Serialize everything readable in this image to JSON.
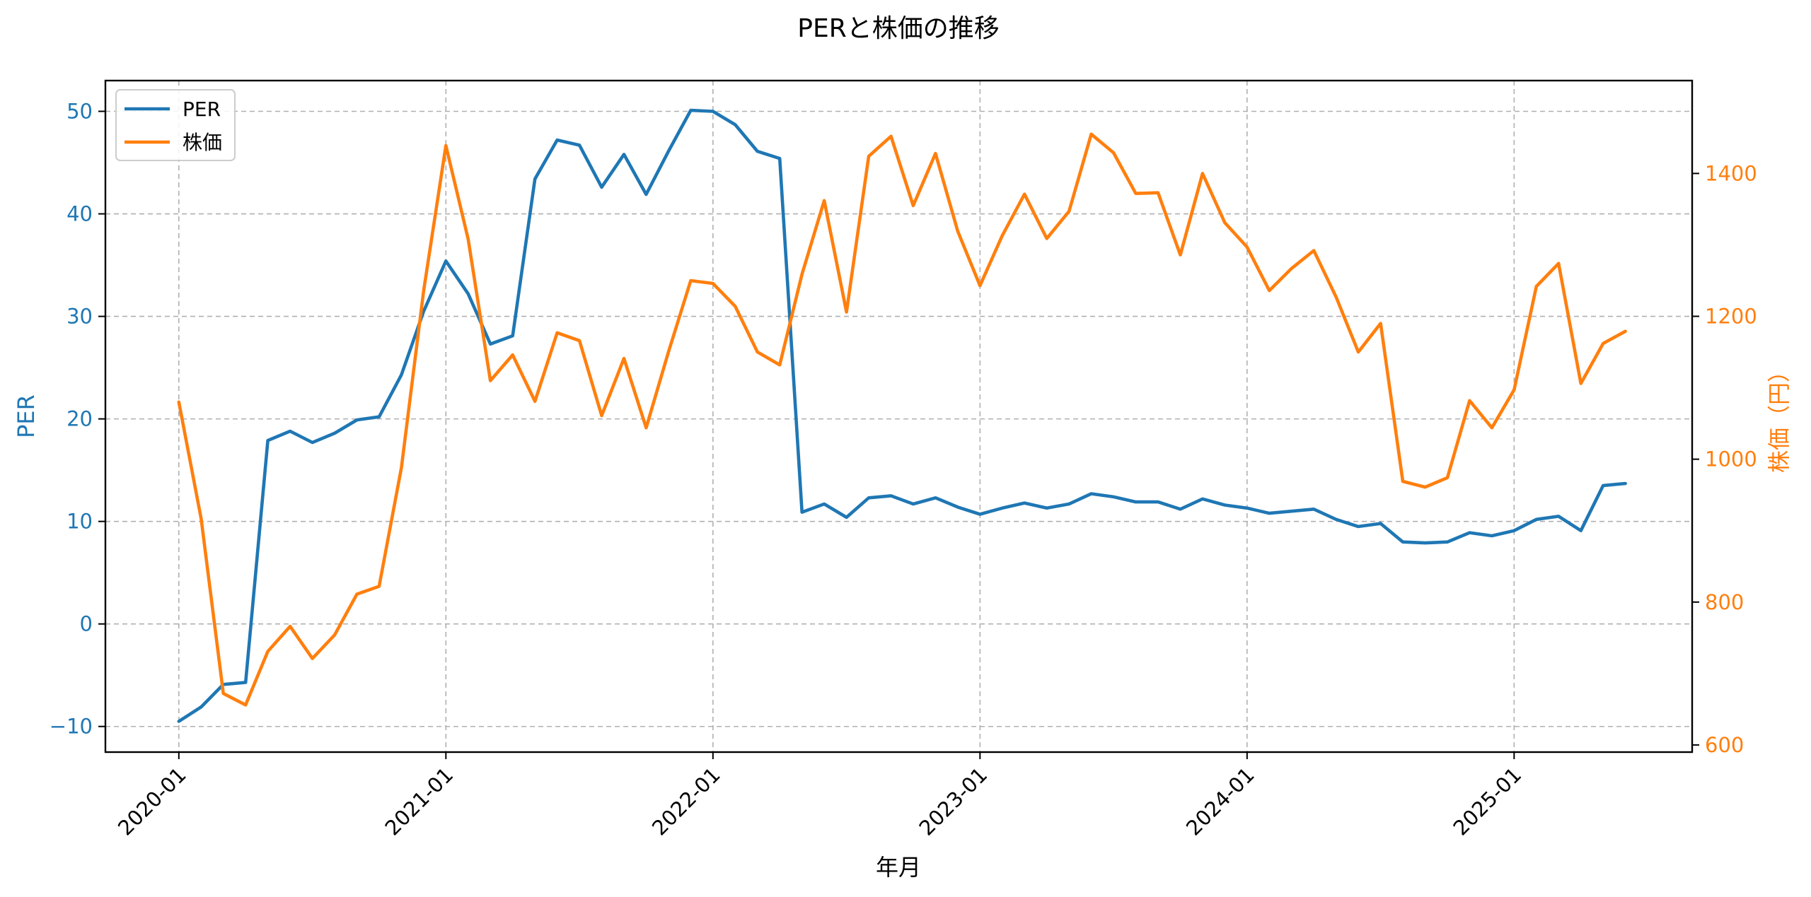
{
  "chart_data": {
    "type": "line",
    "title": "PERと株価の推移",
    "xlabel": "年月",
    "ylabel_left": "PER",
    "ylabel_right": "株価（円）",
    "ylim_left": [
      -12.5,
      53
    ],
    "ylim_right": [
      590,
      1530
    ],
    "yticks_left": [
      -10,
      0,
      10,
      20,
      30,
      40,
      50
    ],
    "ytick_labels_left": [
      "−10",
      "0",
      "10",
      "20",
      "30",
      "40",
      "50"
    ],
    "yticks_right": [
      600,
      800,
      1000,
      1200,
      1400
    ],
    "ytick_labels_right": [
      "600",
      "800",
      "1000",
      "1200",
      "1400"
    ],
    "xticks": [
      0,
      12,
      24,
      36,
      48,
      60
    ],
    "xtick_labels": [
      "2020-01",
      "2021-01",
      "2022-01",
      "2023-01",
      "2024-01",
      "2025-01"
    ],
    "x_range": [
      -3.3,
      68
    ],
    "grid": true,
    "legend_position": "top-left",
    "colors": {
      "per": "#1f77b4",
      "price": "#ff7f0e"
    },
    "x": [
      "2020-01",
      "2020-02",
      "2020-03",
      "2020-04",
      "2020-05",
      "2020-06",
      "2020-07",
      "2020-08",
      "2020-09",
      "2020-10",
      "2020-11",
      "2020-12",
      "2021-01",
      "2021-02",
      "2021-03",
      "2021-04",
      "2021-05",
      "2021-06",
      "2021-07",
      "2021-08",
      "2021-09",
      "2021-10",
      "2021-11",
      "2021-12",
      "2022-01",
      "2022-02",
      "2022-03",
      "2022-04",
      "2022-05",
      "2022-06",
      "2022-07",
      "2022-08",
      "2022-09",
      "2022-10",
      "2022-11",
      "2022-12",
      "2023-01",
      "2023-02",
      "2023-03",
      "2023-04",
      "2023-05",
      "2023-06",
      "2023-07",
      "2023-08",
      "2023-09",
      "2023-10",
      "2023-11",
      "2023-12",
      "2024-01",
      "2024-02",
      "2024-03",
      "2024-04",
      "2024-05",
      "2024-06",
      "2024-07",
      "2024-08",
      "2024-09",
      "2024-10",
      "2024-11",
      "2024-12",
      "2025-01",
      "2025-02",
      "2025-03",
      "2025-04",
      "2025-05",
      "2025-06"
    ],
    "series": [
      {
        "name": "PER",
        "axis": "left",
        "values": [
          -9.5,
          -8.1,
          -5.9,
          -5.7,
          17.9,
          18.8,
          17.7,
          18.6,
          19.9,
          20.2,
          24.3,
          30.5,
          35.4,
          32.2,
          27.3,
          28.1,
          43.4,
          47.2,
          46.7,
          42.6,
          45.8,
          41.9,
          46.1,
          50.1,
          50.0,
          48.7,
          46.1,
          45.4,
          10.9,
          11.7,
          10.4,
          12.3,
          12.5,
          11.7,
          12.3,
          11.4,
          10.7,
          11.3,
          11.8,
          11.3,
          11.7,
          12.7,
          12.4,
          11.9,
          11.9,
          11.2,
          12.2,
          11.6,
          11.3,
          10.8,
          11.0,
          11.2,
          10.2,
          9.5,
          9.8,
          8.0,
          7.9,
          8.0,
          8.9,
          8.6,
          9.1,
          10.2,
          10.5,
          9.1,
          13.5,
          13.7
        ]
      },
      {
        "name": "株価",
        "axis": "right",
        "values": [
          1080,
          917,
          672,
          656,
          731,
          766,
          721,
          754,
          811,
          822,
          988,
          1236,
          1439,
          1308,
          1110,
          1146,
          1081,
          1177,
          1166,
          1061,
          1141,
          1044,
          1150,
          1250,
          1246,
          1214,
          1150,
          1132,
          1259,
          1362,
          1206,
          1424,
          1452,
          1355,
          1428,
          1319,
          1243,
          1313,
          1371,
          1309,
          1347,
          1455,
          1429,
          1372,
          1373,
          1286,
          1400,
          1331,
          1297,
          1236,
          1267,
          1292,
          1227,
          1150,
          1190,
          969,
          961,
          974,
          1082,
          1044,
          1097,
          1242,
          1274,
          1106,
          1162,
          1179
        ]
      }
    ]
  }
}
